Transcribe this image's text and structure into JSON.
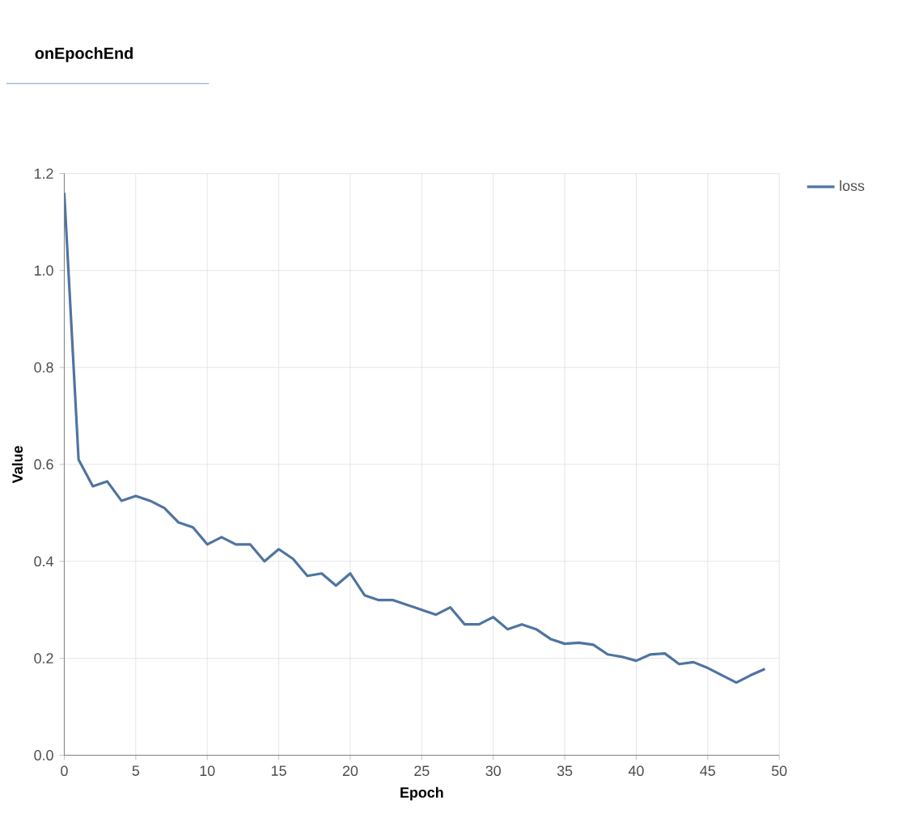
{
  "chart_data": {
    "type": "line",
    "title": "onEpochEnd",
    "xlabel": "Epoch",
    "ylabel": "Value",
    "x": [
      0,
      1,
      2,
      3,
      4,
      5,
      6,
      7,
      8,
      9,
      10,
      11,
      12,
      13,
      14,
      15,
      16,
      17,
      18,
      19,
      20,
      21,
      22,
      23,
      24,
      25,
      26,
      27,
      28,
      29,
      30,
      31,
      32,
      33,
      34,
      35,
      36,
      37,
      38,
      39,
      40,
      41,
      42,
      43,
      44,
      45,
      46,
      47,
      48,
      49
    ],
    "series": [
      {
        "name": "loss",
        "color": "#4f74a0",
        "values": [
          1.16,
          0.61,
          0.555,
          0.565,
          0.525,
          0.535,
          0.525,
          0.51,
          0.48,
          0.47,
          0.435,
          0.45,
          0.435,
          0.435,
          0.4,
          0.425,
          0.405,
          0.37,
          0.375,
          0.35,
          0.375,
          0.33,
          0.32,
          0.32,
          0.31,
          0.3,
          0.29,
          0.305,
          0.27,
          0.27,
          0.285,
          0.26,
          0.27,
          0.26,
          0.24,
          0.23,
          0.232,
          0.228,
          0.208,
          0.203,
          0.195,
          0.208,
          0.21,
          0.188,
          0.192,
          0.18,
          0.165,
          0.15,
          0.165,
          0.178
        ]
      }
    ],
    "xlim": [
      0,
      50
    ],
    "ylim": [
      0,
      1.2
    ],
    "xticks": [
      0,
      5,
      10,
      15,
      20,
      25,
      30,
      35,
      40,
      45,
      50
    ],
    "yticks": [
      {
        "value": 0,
        "label": "0.0"
      },
      {
        "value": 0.2,
        "label": "0.2"
      },
      {
        "value": 0.4,
        "label": "0.4"
      },
      {
        "value": 0.6,
        "label": "0.6"
      },
      {
        "value": 0.8,
        "label": "0.8"
      },
      {
        "value": 1.0,
        "label": "1.0"
      },
      {
        "value": 1.2,
        "label": "1.2"
      }
    ],
    "grid": true,
    "legend": "top right",
    "marker": "none",
    "line_style": "solid"
  }
}
